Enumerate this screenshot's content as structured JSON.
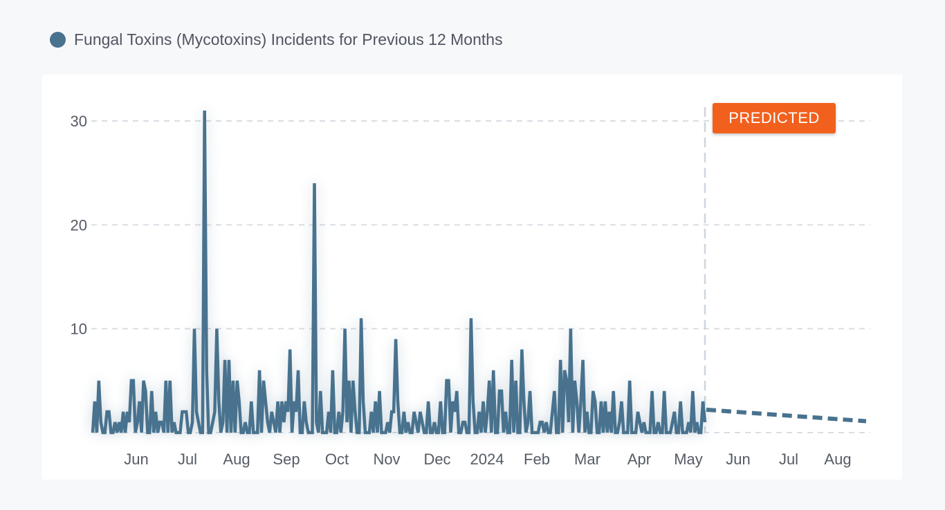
{
  "legend": {
    "label": "Fungal Toxins (Mycotoxins) Incidents for Previous 12 Months",
    "color": "#48728e"
  },
  "badge": {
    "label": "PREDICTED",
    "color": "#f2601e"
  },
  "chart_data": {
    "type": "line",
    "title": "Fungal Toxins (Mycotoxins) Incidents for Previous 12 Months",
    "xlabel": "",
    "ylabel": "",
    "ylim": [
      0,
      30
    ],
    "yticks": [
      10,
      20,
      30
    ],
    "grid": true,
    "xticks": [
      "Jun",
      "Jul",
      "Aug",
      "Sep",
      "Oct",
      "Nov",
      "Dec",
      "2024",
      "Feb",
      "Mar",
      "Apr",
      "May",
      "Jun",
      "Jul",
      "Aug"
    ],
    "series": [
      {
        "name": "Fungal Toxins (Mycotoxins) Incidents",
        "style": "solid",
        "color": "#48728e",
        "values": [
          0,
          3,
          0,
          5,
          1,
          0,
          0,
          2,
          2,
          0,
          0,
          1,
          0,
          1,
          0,
          2,
          0,
          2,
          1,
          5,
          5,
          0,
          1,
          3,
          0,
          5,
          4,
          0,
          0,
          4,
          0,
          2,
          0,
          1,
          1,
          0,
          5,
          0,
          5,
          0,
          1,
          0,
          0,
          0,
          2,
          2,
          2,
          0,
          0,
          1,
          10,
          2,
          1,
          0,
          0,
          31,
          6,
          0,
          0,
          1,
          2,
          10,
          3,
          0,
          1,
          7,
          0,
          7,
          0,
          5,
          0,
          5,
          3,
          0,
          0,
          1,
          0,
          0,
          3,
          0,
          0,
          0,
          6,
          0,
          5,
          3,
          1,
          0,
          2,
          1,
          0,
          3,
          0,
          3,
          1,
          3,
          2,
          8,
          0,
          3,
          2,
          6,
          0,
          0,
          3,
          1,
          0,
          0,
          0,
          24,
          1,
          0,
          4,
          0,
          0,
          0,
          2,
          0,
          6,
          0,
          0,
          2,
          0,
          2,
          10,
          1,
          5,
          0,
          5,
          2,
          0,
          0,
          11,
          3,
          0,
          0,
          0,
          2,
          0,
          3,
          0,
          4,
          0,
          0,
          0,
          1,
          0,
          2,
          2,
          9,
          3,
          0,
          0,
          2,
          0,
          1,
          0,
          0,
          2,
          1,
          0,
          2,
          1,
          0,
          0,
          3,
          0,
          0,
          1,
          0,
          0,
          3,
          0,
          0,
          5,
          5,
          0,
          3,
          2,
          4,
          0,
          0,
          1,
          1,
          0,
          0,
          11,
          3,
          0,
          0,
          2,
          0,
          3,
          0,
          2,
          5,
          0,
          6,
          0,
          0,
          4,
          4,
          0,
          2,
          0,
          0,
          7,
          0,
          5,
          0,
          0,
          8,
          3,
          0,
          1,
          4,
          0,
          0,
          0,
          0,
          1,
          1,
          0,
          1,
          0,
          0,
          2,
          4,
          0,
          0,
          7,
          0,
          6,
          5,
          1,
          10,
          0,
          5,
          3,
          0,
          3,
          7,
          0,
          2,
          0,
          0,
          4,
          3,
          0,
          0,
          3,
          0,
          3,
          0,
          2,
          0,
          4,
          0,
          0,
          1,
          3,
          0,
          0,
          0,
          5,
          0,
          0,
          0,
          2,
          1,
          0,
          1,
          0,
          0,
          0,
          4,
          0,
          0,
          1,
          0,
          0,
          4,
          0,
          0,
          0,
          1,
          2,
          0,
          0,
          3,
          0,
          0,
          0,
          1,
          0,
          4,
          0,
          1,
          0,
          0,
          3,
          1
        ]
      },
      {
        "name": "Predicted",
        "style": "dashed",
        "color": "#48728e",
        "start": 2.2,
        "end": 1.1
      }
    ]
  }
}
